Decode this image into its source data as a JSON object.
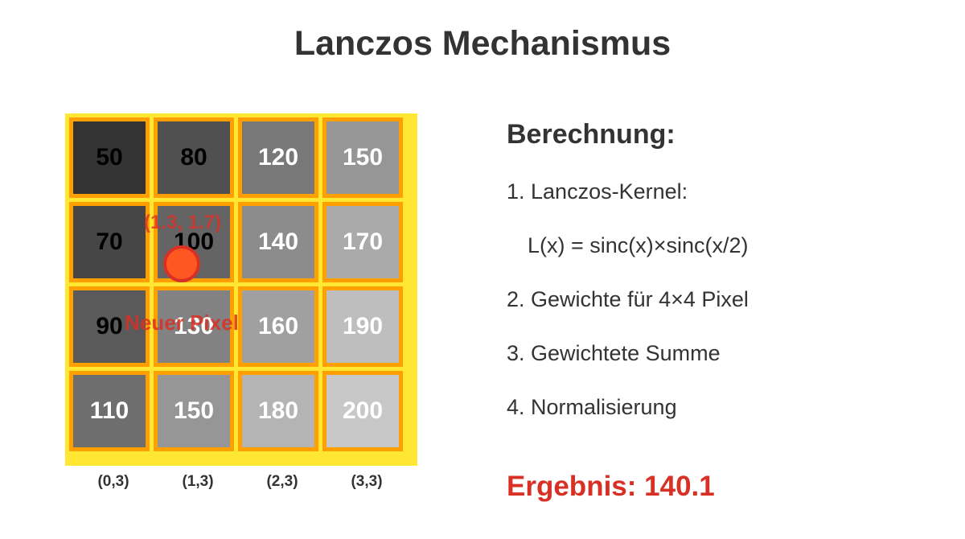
{
  "title": "Lanczos Mechanismus",
  "colors": {
    "accent": "#d93025",
    "grid_background": "#ffe733",
    "cell_border": "#ff9f00",
    "target_point_fill": "#ff5722"
  },
  "grid": {
    "values": [
      [
        50,
        80,
        120,
        150
      ],
      [
        70,
        100,
        140,
        170
      ],
      [
        90,
        130,
        160,
        190
      ],
      [
        110,
        150,
        180,
        200
      ]
    ],
    "cell_colors": [
      [
        "#333333",
        "#505050",
        "#787878",
        "#969696"
      ],
      [
        "#464646",
        "#646464",
        "#8c8c8c",
        "#aaaaaa"
      ],
      [
        "#5a5a5a",
        "#828282",
        "#a0a0a0",
        "#bebebe"
      ],
      [
        "#6e6e6e",
        "#969696",
        "#b4b4b4",
        "#c8c8c8"
      ]
    ],
    "column_labels": [
      "(0,3)",
      "(1,3)",
      "(2,3)",
      "(3,3)"
    ]
  },
  "target": {
    "coord_label": "(1.3, 1.7)",
    "caption": "Neuer Pixel"
  },
  "panel": {
    "heading": "Berechnung:",
    "steps": [
      "1. Lanczos-Kernel:",
      "L(x) = sinc(x)×sinc(x/2)",
      "2. Gewichte für 4×4 Pixel",
      "3. Gewichtete Summe",
      "4. Normalisierung"
    ],
    "result": "Ergebnis: 140.1"
  }
}
